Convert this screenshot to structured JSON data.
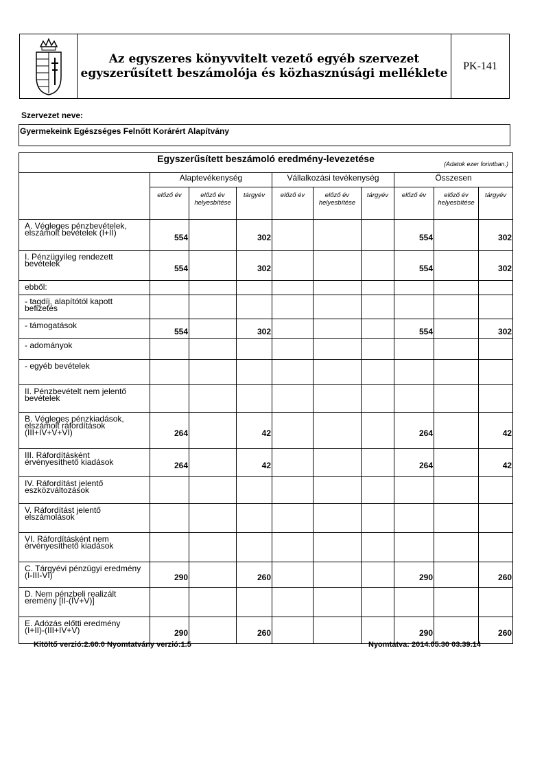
{
  "header": {
    "title_line1": "Az egyszeres könyvvitelt vezető egyéb szervezet",
    "title_line2": "egyszerűsített beszámolója és közhasznúsági melléklete",
    "form_code": "PK-141",
    "logo": "hungarian-coat-of-arms"
  },
  "organization": {
    "label": "Szervezet neve:",
    "name": "Gyermekeink Egészséges Felnőtt Korárért Alapítvány"
  },
  "table": {
    "title": "Egyszerűsített beszámoló eredmény-levezetése",
    "unit": "(Adatok ezer forintban.)",
    "groups": [
      "Alaptevékenység",
      "Vállalkozási tevékenység",
      "Összesen"
    ],
    "subcolumns": [
      "előző év",
      "előző év helyesbítése",
      "tárgyév"
    ],
    "rows": [
      {
        "label": "A. Végleges pénzbevételek,\nelszámolt bevételek (I+II)",
        "values": [
          "554",
          "",
          "302",
          "",
          "",
          "",
          "554",
          "",
          "302"
        ]
      },
      {
        "label": "I. Pénzügyileg rendezett\nbevételek",
        "values": [
          "554",
          "",
          "302",
          "",
          "",
          "",
          "554",
          "",
          "302"
        ]
      },
      {
        "label": "ebből:",
        "values": [
          "",
          "",
          "",
          "",
          "",
          "",
          "",
          "",
          ""
        ]
      },
      {
        "label": "- tagdíj, alapítótól kapott\nbefizetés",
        "values": [
          "",
          "",
          "",
          "",
          "",
          "",
          "",
          "",
          ""
        ]
      },
      {
        "label": "- támogatások",
        "values": [
          "554",
          "",
          "302",
          "",
          "",
          "",
          "554",
          "",
          "302"
        ]
      },
      {
        "label": "- adományok",
        "values": [
          "",
          "",
          "",
          "",
          "",
          "",
          "",
          "",
          ""
        ]
      },
      {
        "label": "- egyéb bevételek",
        "values": [
          "",
          "",
          "",
          "",
          "",
          "",
          "",
          "",
          ""
        ]
      },
      {
        "label": "II. Pénzbevételt nem jelentő\nbevételek",
        "values": [
          "",
          "",
          "",
          "",
          "",
          "",
          "",
          "",
          ""
        ]
      },
      {
        "label": "B.  Végleges pénzkiadások,\n     elszámolt ráfordítások\n     (III+IV+V+VI)",
        "values": [
          "264",
          "",
          "42",
          "",
          "",
          "",
          "264",
          "",
          "42"
        ]
      },
      {
        "label": "III. Ráfordításként\nérvényesíthető kiadások",
        "values": [
          "264",
          "",
          "42",
          "",
          "",
          "",
          "264",
          "",
          "42"
        ]
      },
      {
        "label": "IV. Ráfordítást jelentő\neszközváltozások",
        "values": [
          "",
          "",
          "",
          "",
          "",
          "",
          "",
          "",
          ""
        ]
      },
      {
        "label": "V. Ráfordítást jelentő\nelszámolások",
        "values": [
          "",
          "",
          "",
          "",
          "",
          "",
          "",
          "",
          ""
        ]
      },
      {
        "label": "VI. Ráfordításként nem\nérvényesíthető kiadások",
        "values": [
          "",
          "",
          "",
          "",
          "",
          "",
          "",
          "",
          ""
        ]
      },
      {
        "label": "C. Tárgyévi pénzügyi eredmény\n(I-III-VI)",
        "values": [
          "290",
          "",
          "260",
          "",
          "",
          "",
          "290",
          "",
          "260"
        ]
      },
      {
        "label": "D. Nem pénzbeli realizált\neremény [II-(IV+V)]",
        "values": [
          "",
          "",
          "",
          "",
          "",
          "",
          "",
          "",
          ""
        ]
      },
      {
        "label": "E. Adózás előtti eredmény\n(I+II)-(III+IV+V)",
        "values": [
          "290",
          "",
          "260",
          "",
          "",
          "",
          "290",
          "",
          "260"
        ]
      }
    ]
  },
  "footer": {
    "version": "Kitöltő verzió:2.60.0 Nyomtatvány verzió:1.5",
    "printed": "Nyomtatva: 2014.05.30 03.39.14"
  }
}
